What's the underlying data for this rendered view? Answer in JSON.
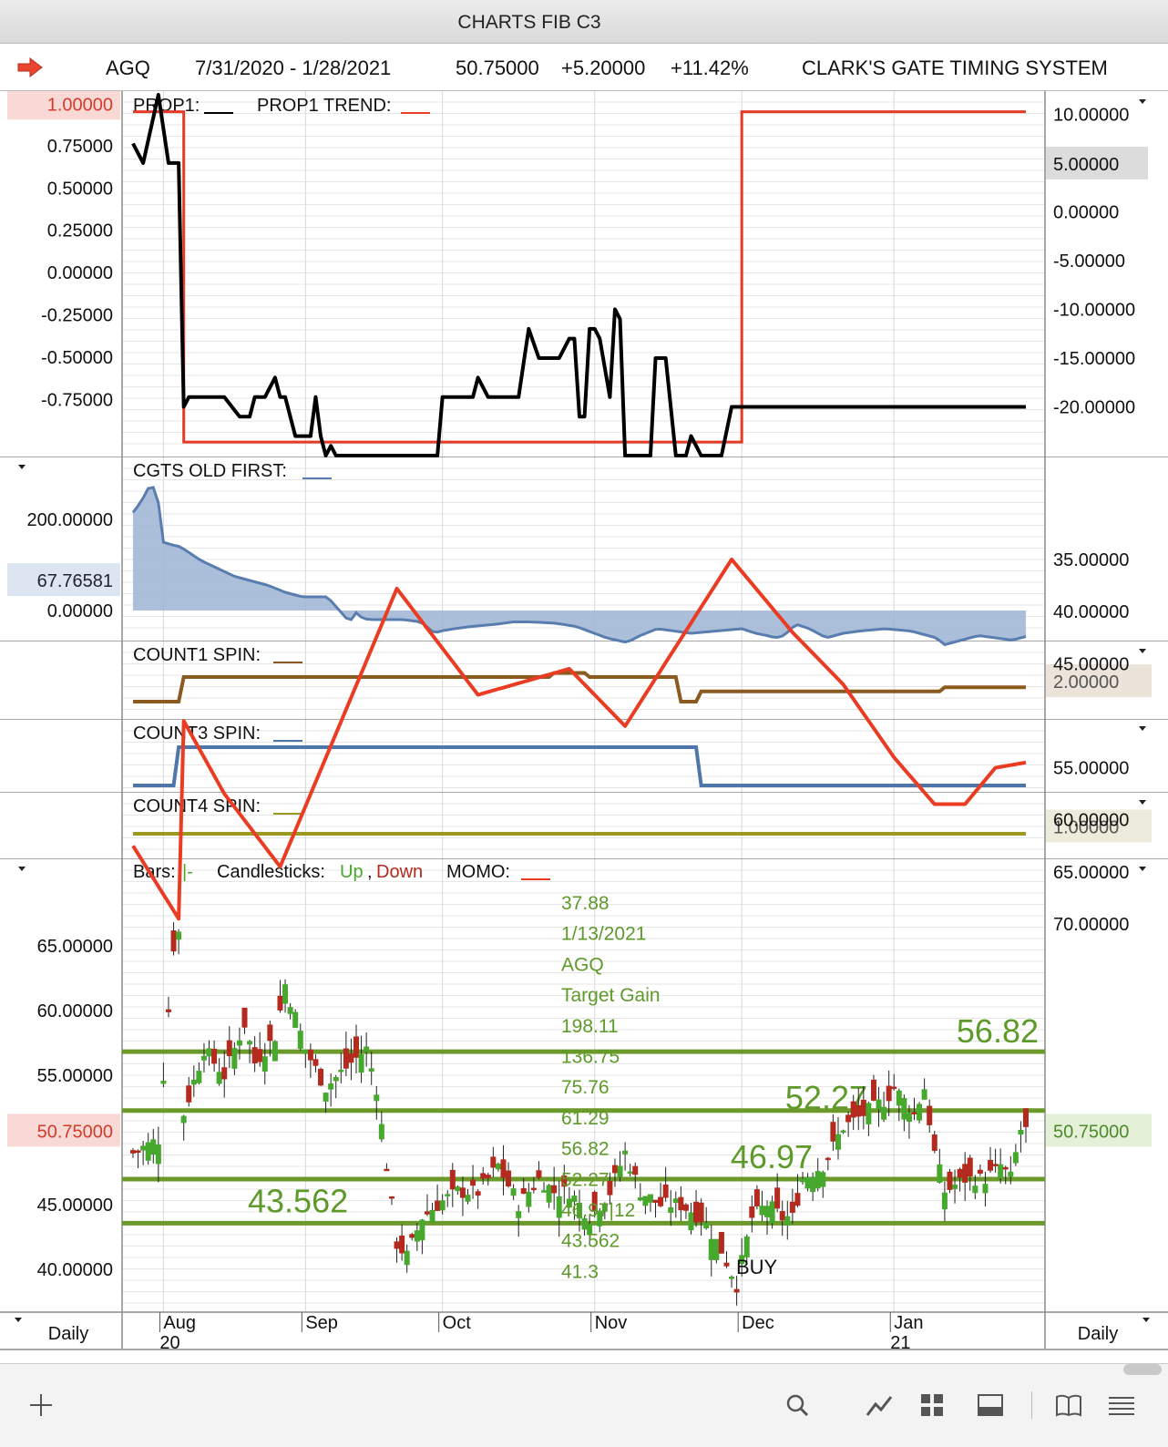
{
  "window": {
    "title": "CHARTS FIB C3"
  },
  "info": {
    "symbol": "AGQ",
    "date_range": "7/31/2020 - 1/28/2021",
    "last": "50.75000",
    "change": "+5.20000",
    "pct_change": "+11.42%",
    "system": "CLARK'S GATE TIMING SYSTEM"
  },
  "colors": {
    "prop1": "#000000",
    "prop1_trend": "#e63b26",
    "cgts": "#5a7db0",
    "cgts_fill": "#9db4d3",
    "count1": "#8b5a1e",
    "count3": "#4f76a8",
    "count4": "#9b9a1f",
    "up": "#46a82c",
    "down": "#b42a1f",
    "momo": "#ea3c22",
    "fib": "#6b9a2a",
    "fib_text": "#5e9a2a"
  },
  "footer": {
    "left": "Daily",
    "right": "Daily"
  },
  "chart_data": [
    {
      "type": "line",
      "panel": "prop1",
      "legend": [
        "PROP1:",
        "PROP1 TREND:"
      ],
      "left_axis": {
        "ticks": [
          "0.75000",
          "0.50000",
          "0.25000",
          "0.00000",
          "-0.25000",
          "-0.50000",
          "-0.75000"
        ],
        "highlight": "1.00000",
        "range": [
          -1.08,
          1.05
        ]
      },
      "right_axis": {
        "ticks": [
          "10.00000",
          "0.00000",
          "-5.00000",
          "-10.00000",
          "-15.00000",
          "-20.00000"
        ],
        "highlight": "5.00000",
        "range": [
          -25,
          12
        ]
      },
      "series": [
        {
          "name": "PROP1",
          "axis": "right",
          "x": [
            0,
            2,
            5,
            7,
            9,
            10,
            11,
            12,
            13,
            15,
            18,
            21,
            23,
            24,
            26,
            28,
            29,
            30,
            32,
            34,
            35,
            36,
            37,
            38,
            39,
            40,
            42,
            44,
            46,
            48,
            50,
            54,
            58,
            60,
            61,
            65,
            67,
            68,
            70,
            72,
            74,
            75,
            76,
            78,
            80,
            82,
            83,
            84,
            86,
            87,
            88,
            89,
            90,
            91,
            92,
            94,
            95,
            96,
            97,
            98,
            100,
            102,
            103,
            105,
            107,
            109,
            110,
            112,
            114,
            116,
            118,
            120,
            122,
            124,
            126,
            128,
            130,
            132,
            134,
            136,
            138,
            140,
            142,
            144,
            146,
            148,
            150,
            152,
            154,
            156,
            158,
            159,
            160,
            162,
            163,
            164,
            166,
            168,
            170,
            172,
            173,
            174,
            175,
            176
          ],
          "y": [
            7,
            5,
            12,
            5,
            5,
            -20,
            -19,
            -19,
            -19,
            -19,
            -19,
            -21,
            -21,
            -19,
            -19,
            -17,
            -19,
            -19,
            -23,
            -23,
            -23,
            -19,
            -23,
            -25,
            -24,
            -25,
            -25,
            -25,
            -25,
            -25,
            -25,
            -25,
            -25,
            -25,
            -19,
            -19,
            -19,
            -17,
            -19,
            -19,
            -19,
            -19,
            -19,
            -12,
            -15,
            -15,
            -15,
            -15,
            -13,
            -13,
            -21,
            -21,
            -12,
            -12,
            -13,
            -19,
            -10,
            -11,
            -25,
            -25,
            -25,
            -25,
            -15,
            -15,
            -25,
            -25,
            -23,
            -25,
            -25,
            -25,
            -20,
            -20,
            -20,
            -20,
            -20,
            -20,
            -20,
            -20,
            -20,
            -20,
            -20,
            -20,
            -20,
            -20,
            -20,
            -20,
            -20,
            -20,
            -20,
            -20,
            -20,
            -20,
            -20,
            -20,
            -20,
            -20,
            -20,
            -20,
            -20,
            -20,
            -20,
            -20,
            -20,
            -20
          ]
        },
        {
          "name": "PROP1 TREND",
          "axis": "left",
          "x": [],
          "y": []
        }
      ]
    },
    {
      "type": "area",
      "panel": "cgts",
      "legend": [
        "CGTS OLD FIRST:"
      ],
      "left_axis": {
        "ticks": [
          "200.00000",
          "0.00000"
        ],
        "highlight": "67.76581",
        "range": [
          -60,
          300
        ]
      },
      "series": [
        {
          "name": "CGTS OLD FIRST",
          "x": [],
          "y": []
        }
      ]
    },
    {
      "type": "line",
      "panel": "count1",
      "legend": [
        "COUNT1 SPIN:"
      ],
      "right_axis": {
        "highlight": "2.00000"
      },
      "series": [
        {
          "name": "COUNT1 SPIN",
          "x": [],
          "y": []
        }
      ]
    },
    {
      "type": "line",
      "panel": "count3",
      "legend": [
        "COUNT3 SPIN:"
      ],
      "series": [
        {
          "name": "COUNT3 SPIN",
          "x": [],
          "y": []
        }
      ]
    },
    {
      "type": "line",
      "panel": "count4",
      "legend": [
        "COUNT4 SPIN:"
      ],
      "right_axis": {
        "highlight": "1.00000"
      },
      "series": [
        {
          "name": "COUNT4 SPIN",
          "x": [],
          "y": []
        }
      ]
    },
    {
      "type": "candlestick",
      "panel": "price",
      "legend": {
        "bars": "Bars:",
        "bars_mark": "|-",
        "candles": "Candlesticks:",
        "up": "Up",
        "comma": ",",
        "down": "Down",
        "momo": "MOMO:"
      },
      "left_axis": {
        "ticks": [
          "65.00000",
          "60.00000",
          "55.00000",
          "45.00000",
          "40.00000"
        ],
        "highlight": "50.75000",
        "range": [
          38,
          71
        ]
      },
      "right_axis": {
        "ticks": [
          "70.00000",
          "65.00000",
          "60.00000",
          "55.00000",
          "45.00000",
          "40.00000",
          "35.00000"
        ],
        "highlight": "50.75000",
        "range": [
          33.5,
          74
        ]
      },
      "fib_levels": [
        56.82,
        52.27,
        46.97,
        43.562
      ],
      "fib_labels": [
        "56.82",
        "52.27",
        "46.97",
        "43.562"
      ],
      "annotations": [
        "37.88",
        "1/13/2021",
        "AGQ",
        "Target Gain",
        "198.11",
        "136.75",
        "75.76",
        "61.29",
        "56.82",
        "52.27",
        "46.97|12",
        "43.562",
        "41.3"
      ],
      "buy_label": "BUY",
      "momo": {
        "x": [],
        "y": []
      },
      "candles": []
    }
  ],
  "x_axis": {
    "months": [
      "Aug",
      "Sep",
      "Oct",
      "Nov",
      "Dec",
      "Jan"
    ],
    "years": [
      "20",
      "21"
    ]
  }
}
